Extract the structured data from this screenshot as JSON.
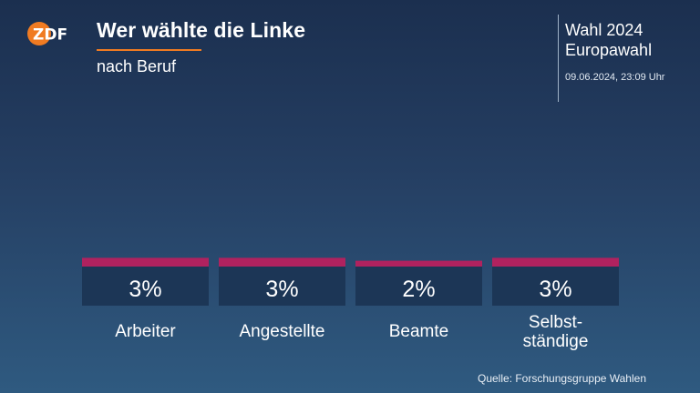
{
  "header": {
    "logo_text": "ZDF",
    "title": "Wer wählte die Linke",
    "subtitle": "nach Beruf",
    "election_line1": "Wahl 2024",
    "election_line2": "Europawahl",
    "timestamp": "09.06.2024, 23:09 Uhr"
  },
  "chart_data": {
    "type": "bar",
    "title": "Wer wählte die Linke",
    "subtitle": "nach Beruf",
    "categories": [
      [
        "Arbeiter"
      ],
      [
        "Angestellte"
      ],
      [
        "Beamte"
      ],
      [
        "Selbst-",
        "ständige"
      ]
    ],
    "values": [
      3,
      3,
      2,
      3
    ],
    "value_labels": [
      "3%",
      "3%",
      "2%",
      "3%"
    ],
    "unit": "%",
    "bar_color": "#b0225f",
    "label_box_color": "#1c3656"
  },
  "footer": {
    "source": "Quelle: Forschungsgruppe Wahlen"
  }
}
